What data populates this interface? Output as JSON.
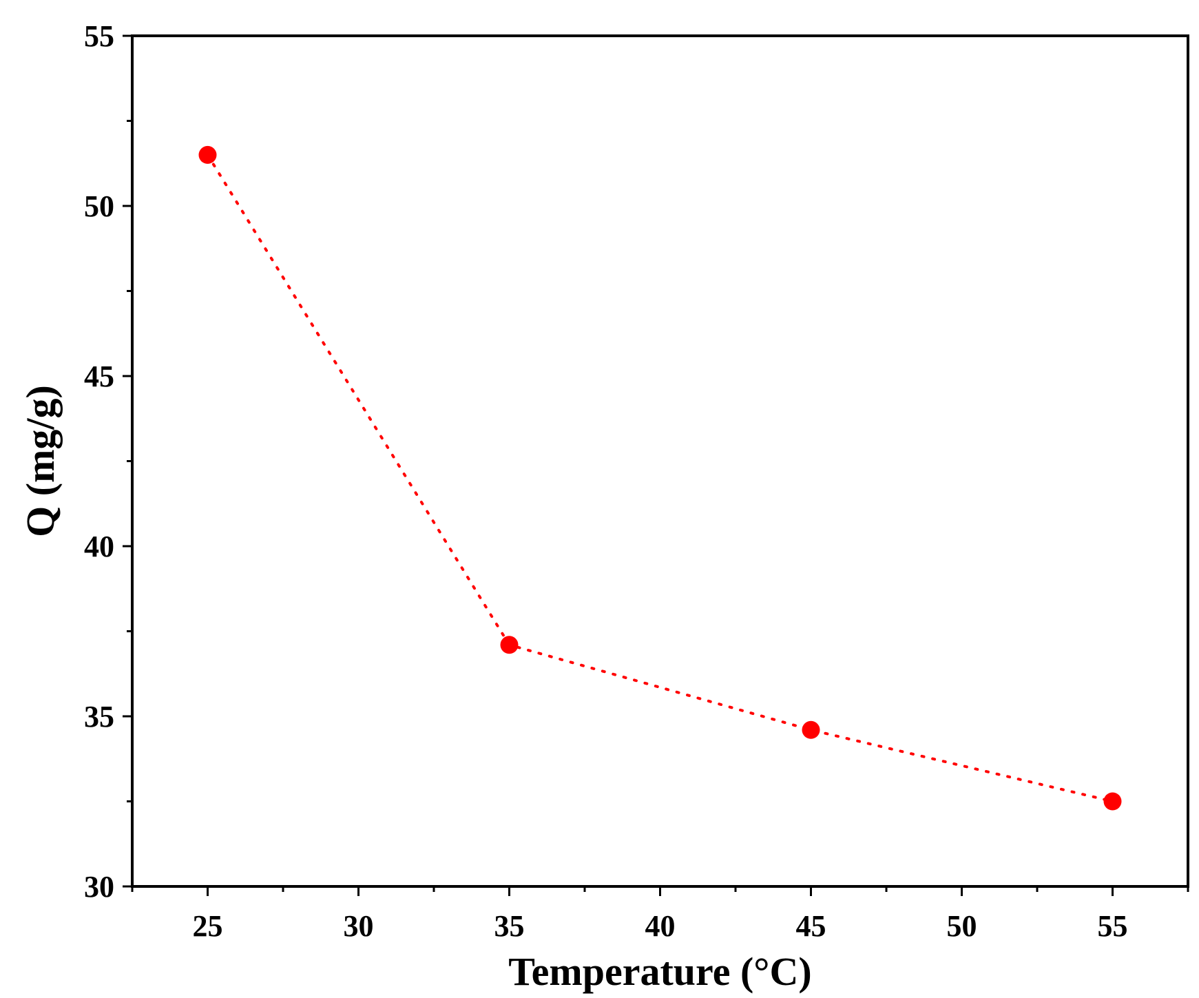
{
  "chart_data": {
    "type": "line",
    "title": "",
    "xlabel": "Temperature (°C)",
    "ylabel": "Q (mg/g)",
    "xlim": [
      22.5,
      57.5
    ],
    "ylim": [
      30,
      55
    ],
    "x_major_ticks": [
      25,
      30,
      35,
      40,
      45,
      50,
      55
    ],
    "x_tick_labels": [
      "25",
      "30",
      "35",
      "40",
      "45",
      "50",
      "55"
    ],
    "x_minor_ticks": [
      22.5,
      27.5,
      32.5,
      37.5,
      42.5,
      47.5,
      52.5,
      57.5
    ],
    "y_major_ticks": [
      30,
      35,
      40,
      45,
      50,
      55
    ],
    "y_tick_labels": [
      "30",
      "35",
      "40",
      "45",
      "50",
      "55"
    ],
    "y_minor_ticks": [
      32.5,
      37.5,
      42.5,
      47.5,
      52.5
    ],
    "grid": false,
    "series": [
      {
        "x": [
          25,
          35,
          45,
          55
        ],
        "y": [
          51.5,
          37.1,
          34.6,
          32.5
        ],
        "color": "#ff0000",
        "line_style": "dotted",
        "marker": "circle"
      }
    ]
  }
}
